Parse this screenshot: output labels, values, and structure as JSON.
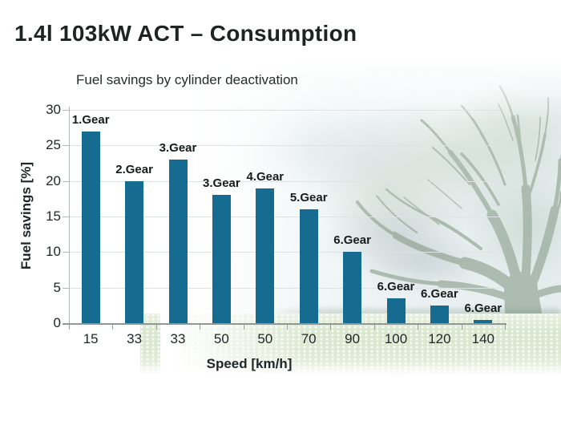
{
  "page": {
    "title": "1.4l 103kW ACT – Consumption"
  },
  "chart_data": {
    "type": "bar",
    "title": "Fuel savings by cylinder deactivation",
    "xlabel": "Speed [km/h]",
    "ylabel": "Fuel savings [%]",
    "ylim": [
      0,
      30
    ],
    "yticks": [
      0,
      5,
      10,
      15,
      20,
      25,
      30
    ],
    "grid": true,
    "legend": "none",
    "categories": [
      "15",
      "33",
      "33",
      "50",
      "50",
      "70",
      "90",
      "100",
      "120",
      "140"
    ],
    "values": [
      27,
      20,
      23,
      18,
      19,
      16,
      10,
      3.5,
      2.5,
      0.5
    ],
    "bar_labels": [
      "1.Gear",
      "2.Gear",
      "3.Gear",
      "3.Gear",
      "4.Gear",
      "5.Gear",
      "6.Gear",
      "6.Gear",
      "6.Gear",
      "6.Gear"
    ],
    "bar_color": "#166b90",
    "background": "meadow-tree-photo"
  }
}
